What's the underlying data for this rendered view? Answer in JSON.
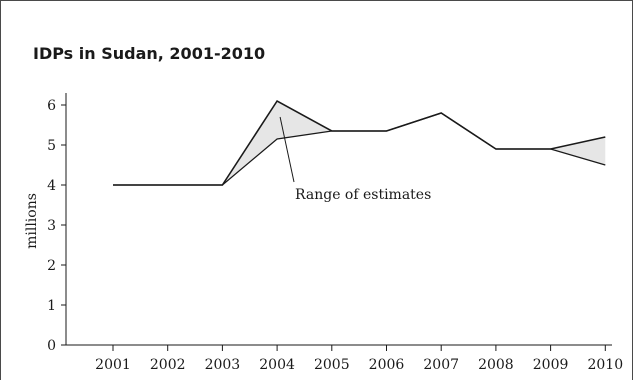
{
  "chart_data": {
    "type": "line",
    "title": "IDPs in Sudan, 2001-2010",
    "ylabel": "millions",
    "xlabel": "",
    "x": [
      "2001",
      "2002",
      "2003",
      "2004",
      "2005",
      "2006",
      "2007",
      "2008",
      "2009",
      "2010"
    ],
    "yticks": [
      "0",
      "1",
      "2",
      "3",
      "4",
      "5",
      "6"
    ],
    "ylim": [
      0,
      6.3
    ],
    "series": [
      {
        "values": [
          4,
          4,
          4,
          6.1,
          5.35,
          5.35,
          5.8,
          4.9,
          4.9,
          5.2
        ]
      },
      {
        "values": [
          4,
          4,
          4,
          5.15,
          5.35,
          5.35,
          5.8,
          4.9,
          4.9,
          4.5
        ]
      }
    ],
    "annotation": "Range of estimates",
    "grid": false,
    "colors": {
      "line": "#1a1a1a",
      "range_fill": "#e6e6e6"
    }
  }
}
